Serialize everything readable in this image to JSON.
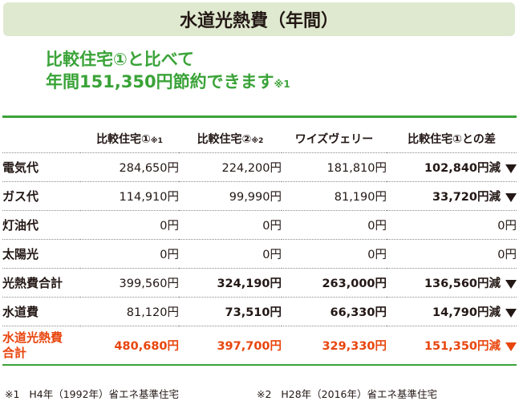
{
  "title": "水道光熱費（年間）",
  "headline": {
    "line1": "比較住宅①と比べて",
    "line2": "年間151,350円節約できます",
    "note_mark": "※1"
  },
  "columns": [
    {
      "label": "比較住宅①",
      "note": "※1"
    },
    {
      "label": "比較住宅②",
      "note": "※2"
    },
    {
      "label": "ワイズヴェリー",
      "note": ""
    },
    {
      "label": "比較住宅①との差",
      "note": ""
    }
  ],
  "rows": [
    {
      "label": "電気代",
      "values": [
        "284,650円",
        "224,200円",
        "181,810円",
        "102,840円減"
      ]
    },
    {
      "label": "ガス代",
      "values": [
        "114,910円",
        "99,990円",
        "81,190円",
        "33,720円減"
      ]
    },
    {
      "label": "灯油代",
      "values": [
        "0円",
        "0円",
        "0円",
        "0円"
      ]
    },
    {
      "label": "太陽光",
      "values": [
        "0円",
        "0円",
        "0円",
        "0円"
      ]
    },
    {
      "label": "光熱費合計",
      "values": [
        "399,560円",
        "324,190円",
        "263,000円",
        "136,560円減"
      ]
    },
    {
      "label": "水道費",
      "values": [
        "81,120円",
        "73,510円",
        "66,330円",
        "14,790円減"
      ]
    }
  ],
  "total": {
    "label_line1": "水道光熱費",
    "label_line2": "合計",
    "values": [
      "480,680円",
      "397,700円",
      "329,330円",
      "151,350円減"
    ]
  },
  "footnotes": [
    {
      "mark": "※1",
      "text": "H4年（1992年）省エネ基準住宅"
    },
    {
      "mark": "※2",
      "text": "H28年（2016年）省エネ基準住宅"
    }
  ],
  "colors": {
    "accent_green": "#3aa338",
    "title_bg": "#dfe9cf",
    "total_red": "#e8450d"
  }
}
